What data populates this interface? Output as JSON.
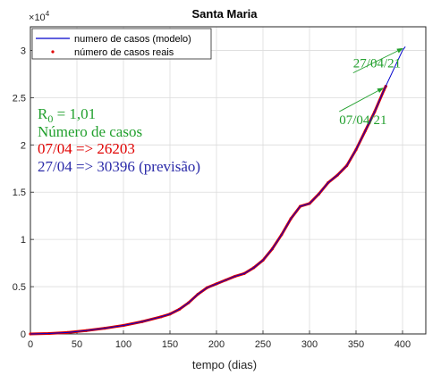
{
  "chart_data": {
    "type": "line",
    "title": "Santa Maria",
    "xlabel": "tempo (dias)",
    "ylabel": "",
    "exponent_label": "10",
    "exponent_power": "4",
    "xlim": [
      0,
      425
    ],
    "ylim": [
      0,
      32500
    ],
    "x_ticks": [
      0,
      50,
      100,
      150,
      200,
      250,
      300,
      350,
      400
    ],
    "y_ticks": [
      0,
      5000,
      10000,
      15000,
      20000,
      25000,
      30000
    ],
    "y_tick_labels": [
      "0",
      "0.5",
      "1",
      "1.5",
      "2",
      "2.5",
      "3"
    ],
    "grid": true,
    "legend_position": "top-left",
    "series": [
      {
        "name": "numero de casos (modelo)",
        "kind": "line",
        "color": "#0000cc",
        "x": [
          0,
          20,
          40,
          60,
          80,
          100,
          120,
          140,
          150,
          160,
          170,
          180,
          190,
          200,
          210,
          220,
          230,
          240,
          250,
          260,
          270,
          280,
          290,
          300,
          310,
          320,
          330,
          340,
          350,
          360,
          370,
          380,
          390,
          400,
          403
        ],
        "y": [
          0,
          50,
          150,
          350,
          600,
          900,
          1300,
          1800,
          2100,
          2600,
          3300,
          4200,
          4900,
          5300,
          5700,
          6100,
          6400,
          7000,
          7800,
          9000,
          10500,
          12200,
          13500,
          13800,
          14800,
          16000,
          16800,
          17800,
          19500,
          21500,
          23500,
          25800,
          27900,
          30000,
          30396
        ]
      },
      {
        "name": "número de casos reais",
        "kind": "scatter",
        "color": "#e00000",
        "x": [
          0,
          20,
          40,
          60,
          80,
          100,
          120,
          140,
          150,
          160,
          170,
          180,
          190,
          200,
          210,
          220,
          230,
          240,
          250,
          260,
          270,
          280,
          290,
          300,
          310,
          320,
          330,
          340,
          350,
          360,
          370,
          380,
          382
        ],
        "y": [
          0,
          50,
          150,
          350,
          600,
          900,
          1300,
          1800,
          2100,
          2600,
          3300,
          4200,
          4900,
          5300,
          5700,
          6100,
          6400,
          7000,
          7800,
          9000,
          10500,
          12200,
          13500,
          13800,
          14800,
          16000,
          16800,
          17800,
          19500,
          21500,
          23500,
          25800,
          26203
        ]
      }
    ],
    "annotations": [
      {
        "text": "27/04/21",
        "color": "#22a02e",
        "arrow_to": [
          403,
          30396
        ],
        "label_at": [
          345,
          28000
        ]
      },
      {
        "text": "07/04/21",
        "color": "#22a02e",
        "arrow_to": [
          382,
          26203
        ],
        "label_at": [
          330,
          23900
        ]
      }
    ],
    "info_text": {
      "r0_symbol": "R",
      "r0_subscript": "0",
      "r0_value": " = 1,01",
      "heading": "Número de casos",
      "real_line": "07/04 => 26203",
      "forecast_line": "27/04 => 30396 (previsão)",
      "green": "#22a02e",
      "red": "#e00000",
      "blue": "#2a2aa8"
    }
  }
}
